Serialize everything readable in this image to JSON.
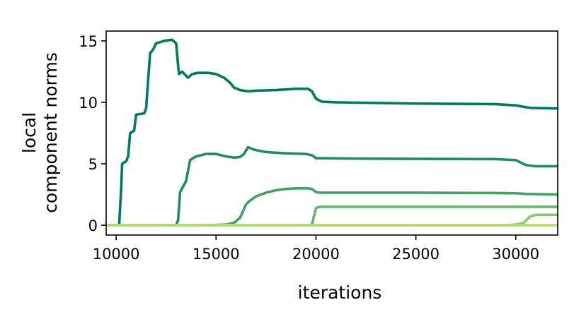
{
  "chart_data": {
    "type": "line",
    "xlabel": "iterations",
    "ylabel": [
      "local",
      "component norms"
    ],
    "xlim": [
      9500,
      32100
    ],
    "ylim": [
      -0.8,
      15.8
    ],
    "xticks": [
      10000,
      15000,
      20000,
      25000,
      30000
    ],
    "yticks": [
      0,
      5,
      10,
      15
    ],
    "xtick_labels": [
      "10000",
      "15000",
      "20000",
      "25000",
      "30000"
    ],
    "ytick_labels": [
      "0",
      "5",
      "10",
      "15"
    ],
    "grid": false,
    "series": [
      {
        "color": "#007a5e",
        "points": [
          [
            9500,
            0
          ],
          [
            10150,
            0
          ],
          [
            10250,
            3.0
          ],
          [
            10300,
            5.0
          ],
          [
            10500,
            5.2
          ],
          [
            10600,
            5.6
          ],
          [
            10700,
            7.5
          ],
          [
            10900,
            7.7
          ],
          [
            11000,
            9.0
          ],
          [
            11400,
            9.1
          ],
          [
            11500,
            9.5
          ],
          [
            11600,
            11.8
          ],
          [
            11700,
            14.0
          ],
          [
            11850,
            14.3
          ],
          [
            12000,
            14.8
          ],
          [
            12400,
            15.0
          ],
          [
            12800,
            15.1
          ],
          [
            13000,
            14.8
          ],
          [
            13100,
            13.0
          ],
          [
            13150,
            12.3
          ],
          [
            13300,
            12.5
          ],
          [
            13600,
            12.0
          ],
          [
            13800,
            12.3
          ],
          [
            14100,
            12.4
          ],
          [
            14600,
            12.4
          ],
          [
            15000,
            12.3
          ],
          [
            15400,
            12.0
          ],
          [
            15700,
            11.6
          ],
          [
            15900,
            11.2
          ],
          [
            16200,
            11.0
          ],
          [
            16600,
            10.9
          ],
          [
            17000,
            10.95
          ],
          [
            18000,
            11.0
          ],
          [
            19000,
            11.1
          ],
          [
            19600,
            11.1
          ],
          [
            19800,
            10.9
          ],
          [
            20000,
            10.3
          ],
          [
            20300,
            10.05
          ],
          [
            21000,
            10.0
          ],
          [
            23000,
            9.95
          ],
          [
            25000,
            9.9
          ],
          [
            27000,
            9.88
          ],
          [
            29000,
            9.85
          ],
          [
            30000,
            9.75
          ],
          [
            30700,
            9.55
          ],
          [
            32100,
            9.5
          ]
        ]
      },
      {
        "color": "#1f8c63",
        "points": [
          [
            9500,
            0
          ],
          [
            13000,
            0
          ],
          [
            13100,
            0.4
          ],
          [
            13200,
            2.7
          ],
          [
            13300,
            3.0
          ],
          [
            13500,
            3.6
          ],
          [
            13700,
            5.3
          ],
          [
            14000,
            5.6
          ],
          [
            14500,
            5.8
          ],
          [
            15000,
            5.8
          ],
          [
            15500,
            5.6
          ],
          [
            15900,
            5.5
          ],
          [
            16200,
            5.55
          ],
          [
            16400,
            5.8
          ],
          [
            16600,
            6.35
          ],
          [
            16900,
            6.15
          ],
          [
            17500,
            5.95
          ],
          [
            18500,
            5.85
          ],
          [
            19500,
            5.8
          ],
          [
            19800,
            5.7
          ],
          [
            20000,
            5.45
          ],
          [
            20500,
            5.45
          ],
          [
            22000,
            5.42
          ],
          [
            25000,
            5.4
          ],
          [
            29000,
            5.38
          ],
          [
            30000,
            5.3
          ],
          [
            30500,
            4.9
          ],
          [
            31000,
            4.8
          ],
          [
            32100,
            4.8
          ]
        ]
      },
      {
        "color": "#41a266",
        "points": [
          [
            9500,
            0
          ],
          [
            14500,
            0
          ],
          [
            15500,
            0.05
          ],
          [
            15900,
            0.2
          ],
          [
            16200,
            0.6
          ],
          [
            16500,
            1.7
          ],
          [
            16700,
            2.0
          ],
          [
            17000,
            2.35
          ],
          [
            17500,
            2.65
          ],
          [
            18000,
            2.85
          ],
          [
            18500,
            2.95
          ],
          [
            19000,
            3.0
          ],
          [
            19600,
            3.0
          ],
          [
            19800,
            2.95
          ],
          [
            20000,
            2.7
          ],
          [
            20200,
            2.65
          ],
          [
            25000,
            2.65
          ],
          [
            29000,
            2.62
          ],
          [
            30000,
            2.6
          ],
          [
            30500,
            2.55
          ],
          [
            32100,
            2.5
          ]
        ]
      },
      {
        "color": "#62b56a",
        "points": [
          [
            9500,
            0
          ],
          [
            19600,
            0
          ],
          [
            19800,
            0.05
          ],
          [
            20000,
            1.4
          ],
          [
            20200,
            1.5
          ],
          [
            25000,
            1.5
          ],
          [
            30000,
            1.5
          ],
          [
            32100,
            1.5
          ]
        ]
      },
      {
        "color": "#88c668",
        "points": [
          [
            9500,
            0
          ],
          [
            29500,
            0
          ],
          [
            30000,
            0.05
          ],
          [
            30400,
            0.2
          ],
          [
            30700,
            0.7
          ],
          [
            31000,
            0.85
          ],
          [
            32100,
            0.85
          ]
        ]
      },
      {
        "color": "#b5dd6e",
        "points": [
          [
            9500,
            0
          ],
          [
            32100,
            0
          ]
        ]
      }
    ]
  }
}
